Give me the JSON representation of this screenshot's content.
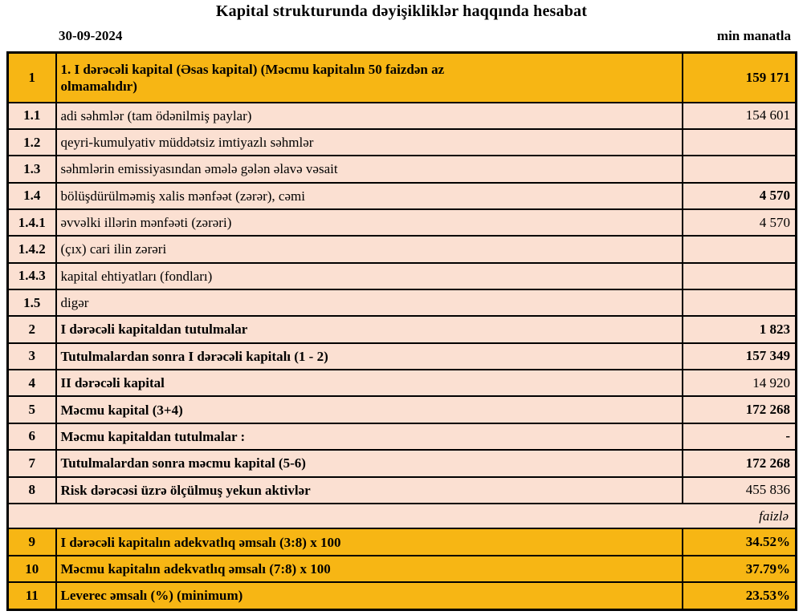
{
  "title": "Kapital strukturunda dəyişikliklər haqqında hesabat",
  "header": {
    "date": "30-09-2024",
    "unit": "min manatla"
  },
  "colors": {
    "gold": "#f7b614",
    "peach": "#fbe0d2",
    "border": "#000000"
  },
  "table": {
    "rows": [
      {
        "num": "1",
        "label": "1. I dərəcəli kapital (Əsas kapital) (Məcmu kapitalın 50 faizdən  az\nolmamalıdır)",
        "value": "159 171",
        "highlight": true,
        "bold_label": true,
        "bold_value": true,
        "tall": true
      },
      {
        "num": "1.1",
        "label": "adi səhmlər (tam ödənilmiş paylar)",
        "value": "154 601"
      },
      {
        "num": "1.2",
        "label": "qeyri-kumulyativ müddətsiz imtiyazlı səhmlər",
        "value": ""
      },
      {
        "num": "1.3",
        "label": "səhmlərin emissiyasından əmələ gələn  əlavə vəsait",
        "value": ""
      },
      {
        "num": "1.4",
        "label": "bölüşdürülməmiş xalis mənfəət (zərər), cəmi",
        "value": "4 570",
        "bold_value": true
      },
      {
        "num": "1.4.1",
        "label": "əvvəlki illərin mənfəəti (zərəri)",
        "value": "4 570"
      },
      {
        "num": "1.4.2",
        "label": "(çıx) cari ilin zərəri",
        "value": ""
      },
      {
        "num": "1.4.3",
        "label": "kapital ehtiyatları (fondları)",
        "value": ""
      },
      {
        "num": "1.5",
        "label": "digər",
        "value": ""
      },
      {
        "num": "2",
        "label": "I dərəcəli kapitaldan  tutulmalar",
        "value": "1 823",
        "bold_label": true,
        "bold_value": true
      },
      {
        "num": "3",
        "label": "Tutulmalardan  sonra I dərəcəli kapitalı (1 - 2)",
        "value": "157 349",
        "bold_label": true,
        "bold_value": true
      },
      {
        "num": "4",
        "label": "II dərəcəli  kapital",
        "value": "14 920",
        "bold_label": true
      },
      {
        "num": "5",
        "label": "Məcmu kapital (3+4)",
        "value": "172 268",
        "bold_label": true,
        "bold_value": true
      },
      {
        "num": "6",
        "label": "Məcmu kapitaldan tutulmalar :",
        "value": "-",
        "bold_label": true,
        "bold_value": true
      },
      {
        "num": "7",
        "label": "Tutulmalardan sonra məcmu kapital (5-6)",
        "value": "172 268",
        "bold_label": true,
        "bold_value": true
      },
      {
        "num": "8",
        "label": "Risk dərəcəsi üzrə ölçülmuş  yekun aktivlər",
        "value": "455 836",
        "bold_label": true
      },
      {
        "type": "spacer",
        "label": "faizlə"
      },
      {
        "num": "9",
        "label": "I dərəcəli  kapitalın  adekvatlıq əmsalı (3:8) x 100",
        "value": "34.52%",
        "highlight": true,
        "bold_label": true,
        "bold_value": true
      },
      {
        "num": "10",
        "label": "Məcmu kapitalın  adekvatlıq  əmsalı (7:8) x 100",
        "value": "37.79%",
        "highlight": true,
        "bold_label": true,
        "bold_value": true
      },
      {
        "num": "11",
        "label": "Leverec əmsalı (%) (minimum)",
        "value": "23.53%",
        "highlight": true,
        "bold_label": true,
        "bold_value": true
      }
    ]
  }
}
